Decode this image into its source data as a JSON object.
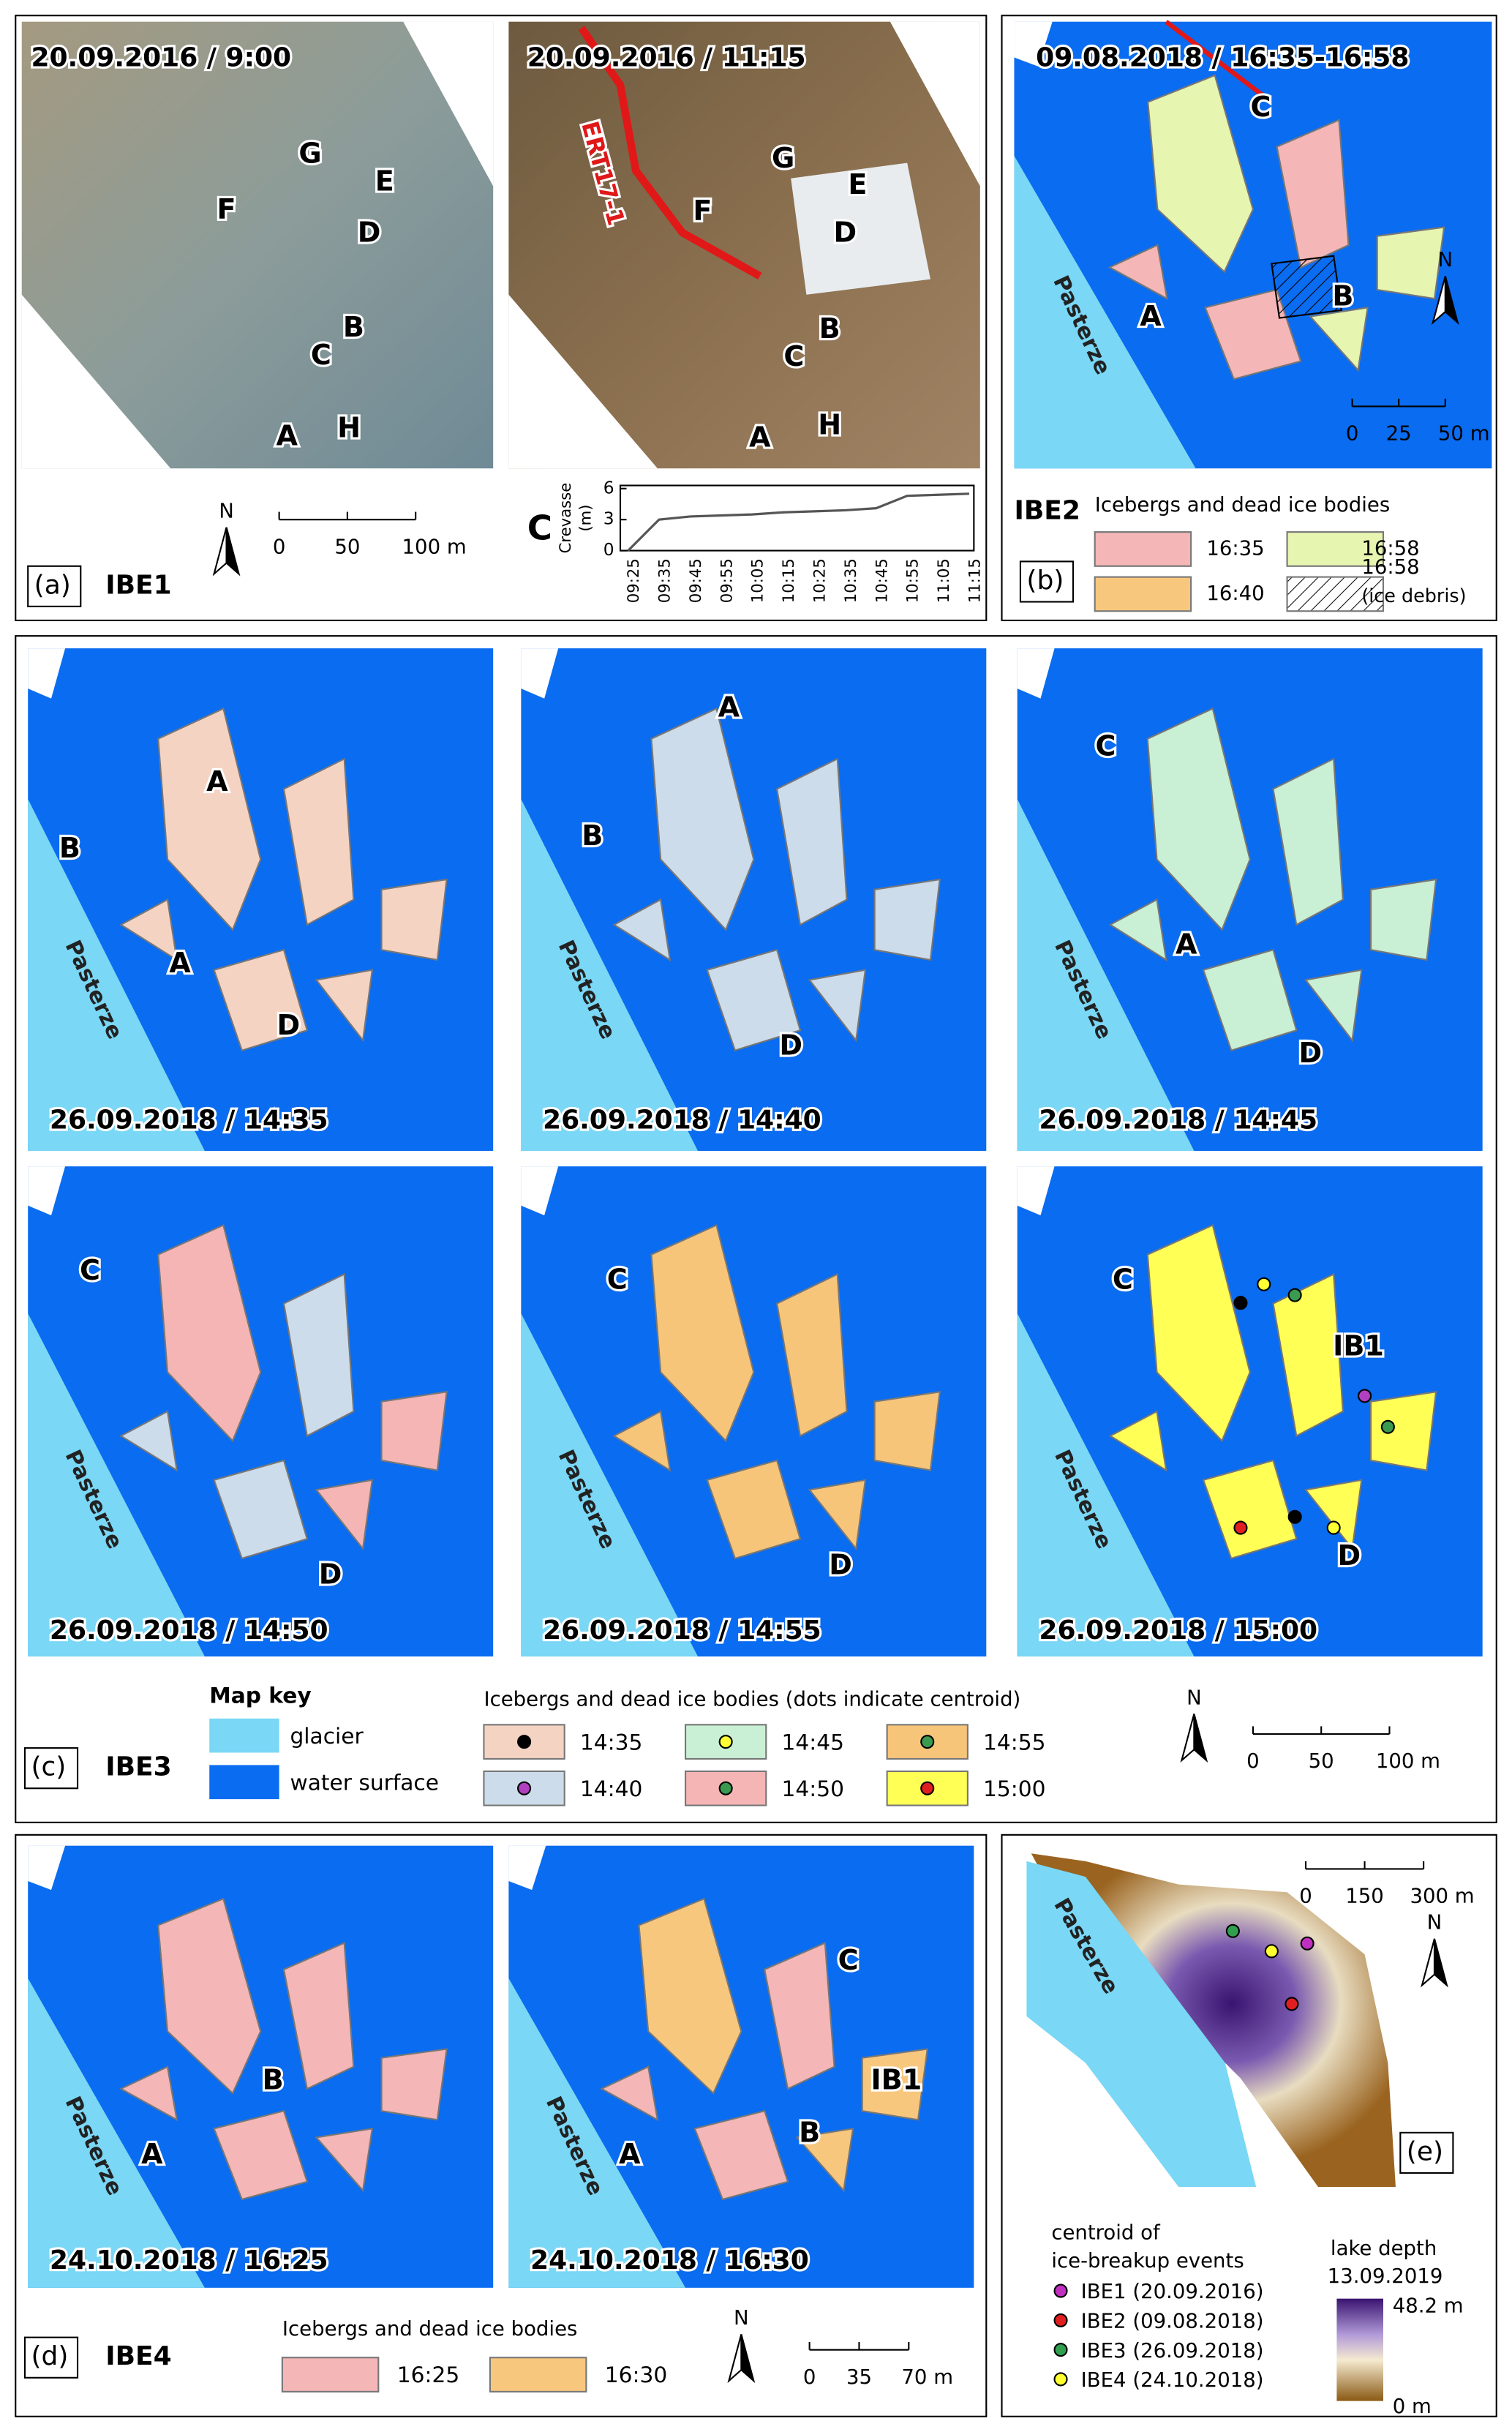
{
  "panel_a": {
    "label": "(a)",
    "event": "IBE1",
    "photos": [
      {
        "timestamp": "20.09.2016 / 9:00",
        "sites": [
          "G",
          "E",
          "F",
          "D",
          "B",
          "C",
          "A",
          "H"
        ]
      },
      {
        "timestamp": "20.09.2016 / 11:15",
        "profile": "ERT17-1",
        "sites": [
          "G",
          "E",
          "F",
          "D",
          "B",
          "C",
          "A",
          "H"
        ]
      }
    ],
    "north": "N",
    "scale_bar": [
      "0",
      "50",
      "100 m"
    ]
  },
  "chart_data": {
    "type": "line",
    "title": "C",
    "y_label": [
      "Crevasse",
      "(m)"
    ],
    "categories": [
      "09:25",
      "09:35",
      "09:45",
      "09:55",
      "10:05",
      "10:15",
      "10:25",
      "10:35",
      "10:45",
      "10:55",
      "11:05",
      "11:15"
    ],
    "values": [
      0,
      3,
      3.3,
      3.4,
      3.5,
      3.7,
      3.8,
      3.9,
      4.1,
      5.3,
      5.4,
      5.5
    ],
    "color": "#555555",
    "ylim": [
      0,
      6
    ],
    "yticks": [
      0,
      3,
      6
    ]
  },
  "panel_b": {
    "label": "(b)",
    "event": "IBE2",
    "timestamp": "09.08.2018 / 16:35-16:58",
    "sites": [
      "C",
      "B",
      "A"
    ],
    "glacier": "Pasterze",
    "north": "N",
    "scale_bar": [
      "0",
      "25",
      "50 m"
    ],
    "legend_title": "Icebergs and dead ice bodies",
    "legend": [
      {
        "label": "16:35",
        "color": "#f4b6b6"
      },
      {
        "label": "16:40",
        "color": "#f8c77e"
      },
      {
        "label": "16:58",
        "color": "#e6f5b0"
      },
      {
        "label": [
          "16:58",
          "(ice debris)"
        ],
        "hatch": true
      }
    ]
  },
  "panel_c": {
    "label": "(c)",
    "event": "IBE3",
    "maps": [
      {
        "timestamp": "26.09.2018 / 14:35",
        "glacier": "Pasterze",
        "sites": [
          "A",
          "B",
          "A",
          "D"
        ]
      },
      {
        "timestamp": "26.09.2018 / 14:40",
        "glacier": "Pasterze",
        "sites": [
          "A",
          "B",
          "D"
        ]
      },
      {
        "timestamp": "26.09.2018 / 14:45",
        "glacier": "Pasterze",
        "sites": [
          "C",
          "A",
          "D"
        ]
      },
      {
        "timestamp": "26.09.2018 / 14:50",
        "glacier": "Pasterze",
        "sites": [
          "C",
          "D"
        ]
      },
      {
        "timestamp": "26.09.2018 / 14:55",
        "glacier": "Pasterze",
        "sites": [
          "C",
          "D"
        ]
      },
      {
        "timestamp": "26.09.2018 / 15:00",
        "glacier": "Pasterze",
        "sites": [
          "C",
          "IB1",
          "D"
        ]
      }
    ],
    "map_key": {
      "title": "Map key",
      "items": [
        {
          "label": "glacier",
          "color": "#7ad7f5"
        },
        {
          "label": "water surface",
          "color": "#0a6cf0"
        }
      ]
    },
    "legend_title": "Icebergs and dead ice bodies (dots indicate centroid)",
    "legend": [
      {
        "label": "14:35",
        "color": "#f5d3c3",
        "dot": "#000000"
      },
      {
        "label": "14:45",
        "color": "#c9f0d4",
        "dot": "#ffff33"
      },
      {
        "label": "14:55",
        "color": "#f7c57a",
        "dot": "#3a9a50"
      },
      {
        "label": "14:40",
        "color": "#cddcea",
        "dot": "#b040c0"
      },
      {
        "label": "14:50",
        "color": "#f5b5b5",
        "dot": "#3a9a50"
      },
      {
        "label": "15:00",
        "color": "#ffff55",
        "dot": "#e02020"
      }
    ],
    "north": "N",
    "scale_bar": [
      "0",
      "50",
      "100 m"
    ]
  },
  "panel_d": {
    "label": "(d)",
    "event": "IBE4",
    "maps": [
      {
        "timestamp": "24.10.2018 / 16:25",
        "glacier": "Pasterze",
        "sites": [
          "B",
          "A"
        ]
      },
      {
        "timestamp": "24.10.2018 / 16:30",
        "glacier": "Pasterze",
        "sites": [
          "C",
          "IB1",
          "B",
          "A"
        ]
      }
    ],
    "legend_title": "Icebergs and dead ice bodies",
    "legend": [
      {
        "label": "16:25",
        "color": "#f4b6b6"
      },
      {
        "label": "16:30",
        "color": "#f8c77e"
      }
    ],
    "north": "N",
    "scale_bar": [
      "0",
      "35",
      "70 m"
    ]
  },
  "panel_e": {
    "label": "(e)",
    "glacier": "Pasterze",
    "north": "N",
    "scale_bar": [
      "0",
      "150",
      "300 m"
    ],
    "legend_title": [
      "centroid of",
      "ice-breakup events"
    ],
    "legend": [
      {
        "label": "IBE1 (20.09.2016)",
        "color": "#c030c0"
      },
      {
        "label": "IBE2 (09.08.2018)",
        "color": "#e02020"
      },
      {
        "label": "IBE3 (26.09.2018)",
        "color": "#30a050"
      },
      {
        "label": "IBE4 (24.10.2018)",
        "color": "#ffff30"
      }
    ],
    "depth_title": [
      "lake depth",
      "13.09.2019"
    ],
    "depth_max": "48.2 m",
    "depth_min": "0 m"
  }
}
